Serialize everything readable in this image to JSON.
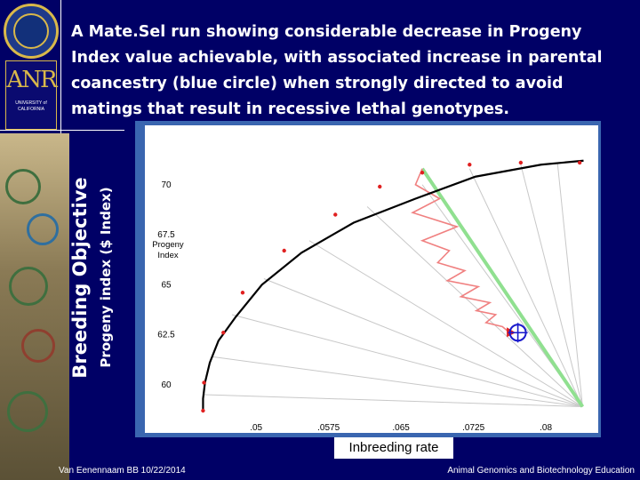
{
  "slide": {
    "title": "A Mate.Sel run showing considerable decrease in Progeny Index value achievable, with associated increase in parental coancestry (blue circle) when strongly directed to avoid matings that result in recessive lethal genotypes.",
    "y_label_outer": "Breeding Objective",
    "y_label_inner": "Progeny index ($ Index)",
    "x_label": "Inbreeding rate",
    "footer_left": "Van Eenennaam BB 10/22/2014",
    "footer_right": "Animal Genomics and Biotechnology Education",
    "logo_text": "ANR",
    "logo_subtext": "UNIVERSITY of CALIFORNIA"
  },
  "colors": {
    "background": "#000066",
    "frontier": "#000000",
    "frontier_points": "#e02020",
    "highlight_ray": "#90e090",
    "rays": "#c8c8c8",
    "path": "#f08080",
    "circle": "#1a1acc"
  },
  "chart_data": {
    "type": "line",
    "y_axis_title": "Progeny Index",
    "xlim": [
      0.044,
      0.0845
    ],
    "ylim": [
      58.3,
      72.7
    ],
    "x_ticks": [
      ".05",
      ".0575",
      ".065",
      ".0725",
      ".08"
    ],
    "x_tick_values": [
      0.05,
      0.0575,
      0.065,
      0.0725,
      0.08
    ],
    "y_ticks": [
      "60",
      "62.5",
      "65",
      "67.5",
      "70"
    ],
    "y_tick_values": [
      60,
      62.5,
      65,
      67.5,
      70
    ],
    "frontier": {
      "x": [
        0.0445,
        0.0445,
        0.0447,
        0.0452,
        0.0461,
        0.0479,
        0.0506,
        0.0547,
        0.0601,
        0.0665,
        0.0727,
        0.0795,
        0.0839
      ],
      "y": [
        58.7,
        59.3,
        60.1,
        61.1,
        62.2,
        63.4,
        65.0,
        66.6,
        68.1,
        69.3,
        70.4,
        71.0,
        71.2
      ]
    },
    "frontier_markers": {
      "x": [
        0.0445,
        0.0446,
        0.0466,
        0.0486,
        0.0529,
        0.0582,
        0.0628,
        0.0672,
        0.0721,
        0.0774,
        0.0835
      ],
      "y": [
        58.7,
        60.1,
        62.6,
        64.6,
        66.7,
        68.5,
        69.9,
        70.6,
        71.0,
        71.1,
        71.1
      ]
    },
    "rays_from": {
      "x": 0.0838,
      "y": 58.9
    },
    "rays_to": {
      "x": [
        0.0446,
        0.0454,
        0.0475,
        0.0508,
        0.0555,
        0.0615,
        0.0672,
        0.0721,
        0.0774,
        0.0812
      ],
      "y": [
        59.5,
        61.4,
        63.5,
        65.3,
        67.2,
        68.9,
        70.0,
        70.8,
        71.0,
        71.1
      ]
    },
    "highlight_ray_to": {
      "x": 0.0672,
      "y": 70.8
    },
    "search_path": {
      "x": [
        0.0672,
        0.0665,
        0.069,
        0.0662,
        0.0708,
        0.0672,
        0.07,
        0.0688,
        0.0716,
        0.0698,
        0.073,
        0.0712,
        0.0742,
        0.0728,
        0.0748,
        0.0738,
        0.0755,
        0.076,
        0.0765
      ],
      "y": [
        70.8,
        70.0,
        69.3,
        68.6,
        67.9,
        67.2,
        66.7,
        66.1,
        65.7,
        65.2,
        64.9,
        64.4,
        64.1,
        63.7,
        63.5,
        63.1,
        62.9,
        62.7,
        62.6
      ]
    },
    "parental_coancestry_circle": {
      "x": 0.0771,
      "y": 62.6
    }
  }
}
